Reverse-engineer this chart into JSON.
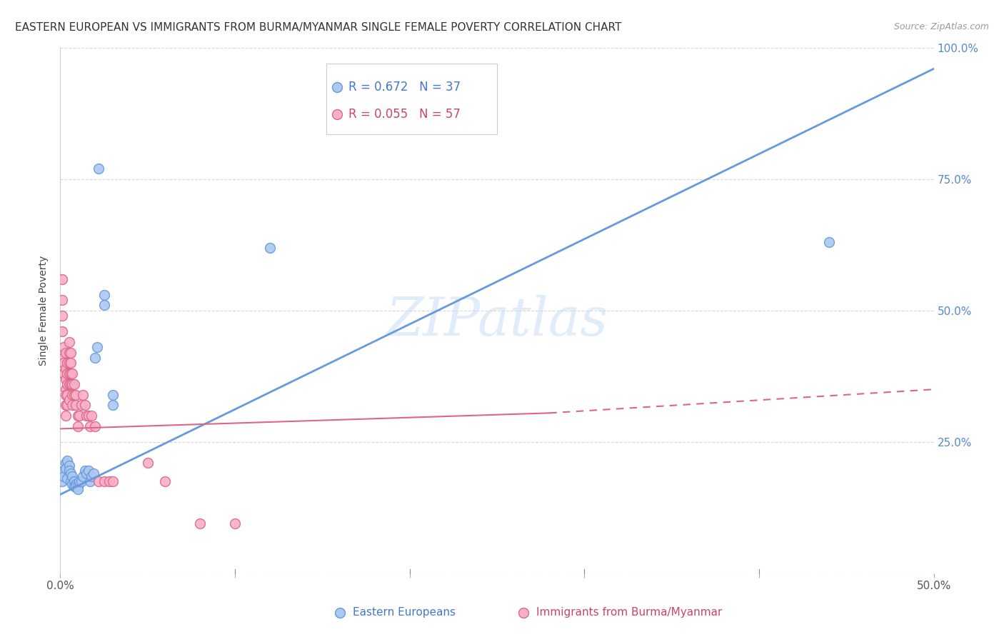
{
  "title": "EASTERN EUROPEAN VS IMMIGRANTS FROM BURMA/MYANMAR SINGLE FEMALE POVERTY CORRELATION CHART",
  "source": "Source: ZipAtlas.com",
  "ylabel": "Single Female Poverty",
  "watermark": "ZIPatlas",
  "legend_entries": [
    {
      "label": "Eastern Europeans",
      "R": "0.672",
      "N": "37",
      "dot_color": "#aac8f0",
      "dot_edge": "#6699dd",
      "text_color": "#4477cc"
    },
    {
      "label": "Immigrants from Burma/Myanmar",
      "R": "0.055",
      "N": "57",
      "dot_color": "#f8b0c8",
      "dot_edge": "#dd6688",
      "text_color": "#cc4466"
    }
  ],
  "blue_scatter": [
    [
      0.001,
      0.175
    ],
    [
      0.002,
      0.195
    ],
    [
      0.002,
      0.185
    ],
    [
      0.003,
      0.21
    ],
    [
      0.003,
      0.2
    ],
    [
      0.004,
      0.215
    ],
    [
      0.004,
      0.18
    ],
    [
      0.005,
      0.205
    ],
    [
      0.005,
      0.195
    ],
    [
      0.006,
      0.19
    ],
    [
      0.006,
      0.175
    ],
    [
      0.007,
      0.185
    ],
    [
      0.007,
      0.17
    ],
    [
      0.008,
      0.175
    ],
    [
      0.008,
      0.165
    ],
    [
      0.009,
      0.17
    ],
    [
      0.009,
      0.165
    ],
    [
      0.01,
      0.165
    ],
    [
      0.01,
      0.16
    ],
    [
      0.011,
      0.175
    ],
    [
      0.012,
      0.175
    ],
    [
      0.013,
      0.185
    ],
    [
      0.014,
      0.195
    ],
    [
      0.015,
      0.19
    ],
    [
      0.016,
      0.195
    ],
    [
      0.017,
      0.175
    ],
    [
      0.018,
      0.185
    ],
    [
      0.019,
      0.19
    ],
    [
      0.02,
      0.41
    ],
    [
      0.021,
      0.43
    ],
    [
      0.022,
      0.77
    ],
    [
      0.025,
      0.53
    ],
    [
      0.025,
      0.51
    ],
    [
      0.03,
      0.34
    ],
    [
      0.03,
      0.32
    ],
    [
      0.44,
      0.63
    ],
    [
      0.12,
      0.62
    ]
  ],
  "pink_scatter": [
    [
      0.001,
      0.56
    ],
    [
      0.001,
      0.52
    ],
    [
      0.001,
      0.49
    ],
    [
      0.001,
      0.46
    ],
    [
      0.002,
      0.43
    ],
    [
      0.002,
      0.41
    ],
    [
      0.002,
      0.4
    ],
    [
      0.002,
      0.38
    ],
    [
      0.003,
      0.42
    ],
    [
      0.003,
      0.39
    ],
    [
      0.003,
      0.37
    ],
    [
      0.003,
      0.35
    ],
    [
      0.003,
      0.34
    ],
    [
      0.003,
      0.32
    ],
    [
      0.003,
      0.3
    ],
    [
      0.004,
      0.4
    ],
    [
      0.004,
      0.38
    ],
    [
      0.004,
      0.36
    ],
    [
      0.004,
      0.34
    ],
    [
      0.004,
      0.32
    ],
    [
      0.005,
      0.44
    ],
    [
      0.005,
      0.42
    ],
    [
      0.005,
      0.4
    ],
    [
      0.005,
      0.38
    ],
    [
      0.005,
      0.36
    ],
    [
      0.005,
      0.33
    ],
    [
      0.006,
      0.42
    ],
    [
      0.006,
      0.4
    ],
    [
      0.006,
      0.38
    ],
    [
      0.006,
      0.36
    ],
    [
      0.007,
      0.38
    ],
    [
      0.007,
      0.36
    ],
    [
      0.007,
      0.34
    ],
    [
      0.007,
      0.32
    ],
    [
      0.008,
      0.36
    ],
    [
      0.008,
      0.34
    ],
    [
      0.009,
      0.34
    ],
    [
      0.009,
      0.32
    ],
    [
      0.01,
      0.3
    ],
    [
      0.01,
      0.28
    ],
    [
      0.011,
      0.3
    ],
    [
      0.012,
      0.32
    ],
    [
      0.013,
      0.34
    ],
    [
      0.014,
      0.32
    ],
    [
      0.015,
      0.3
    ],
    [
      0.016,
      0.3
    ],
    [
      0.017,
      0.28
    ],
    [
      0.018,
      0.3
    ],
    [
      0.02,
      0.28
    ],
    [
      0.022,
      0.175
    ],
    [
      0.025,
      0.175
    ],
    [
      0.028,
      0.175
    ],
    [
      0.03,
      0.175
    ],
    [
      0.05,
      0.21
    ],
    [
      0.06,
      0.175
    ],
    [
      0.08,
      0.095
    ],
    [
      0.1,
      0.095
    ]
  ],
  "xlim": [
    0.0,
    0.5
  ],
  "ylim": [
    0.0,
    1.0
  ],
  "yticks": [
    0.0,
    0.25,
    0.5,
    0.75,
    1.0
  ],
  "ytick_labels": [
    "",
    "25.0%",
    "50.0%",
    "75.0%",
    "100.0%"
  ],
  "xtick_positions": [
    0.0,
    0.1,
    0.2,
    0.3,
    0.4,
    0.5
  ],
  "xtick_labels": [
    "0.0%",
    "",
    "",
    "",
    "",
    "50.0%"
  ],
  "blue_line": {
    "x0": 0.0,
    "y0": 0.15,
    "x1": 0.5,
    "y1": 0.96
  },
  "pink_line_solid": {
    "x0": 0.0,
    "y0": 0.275,
    "x1": 0.28,
    "y1": 0.305
  },
  "pink_line_dash": {
    "x0": 0.28,
    "y0": 0.305,
    "x1": 0.5,
    "y1": 0.35
  },
  "background_color": "#ffffff",
  "grid_color": "#d8d8d8",
  "title_fontsize": 11,
  "source_fontsize": 9,
  "tick_fontsize": 11,
  "ylabel_fontsize": 10
}
